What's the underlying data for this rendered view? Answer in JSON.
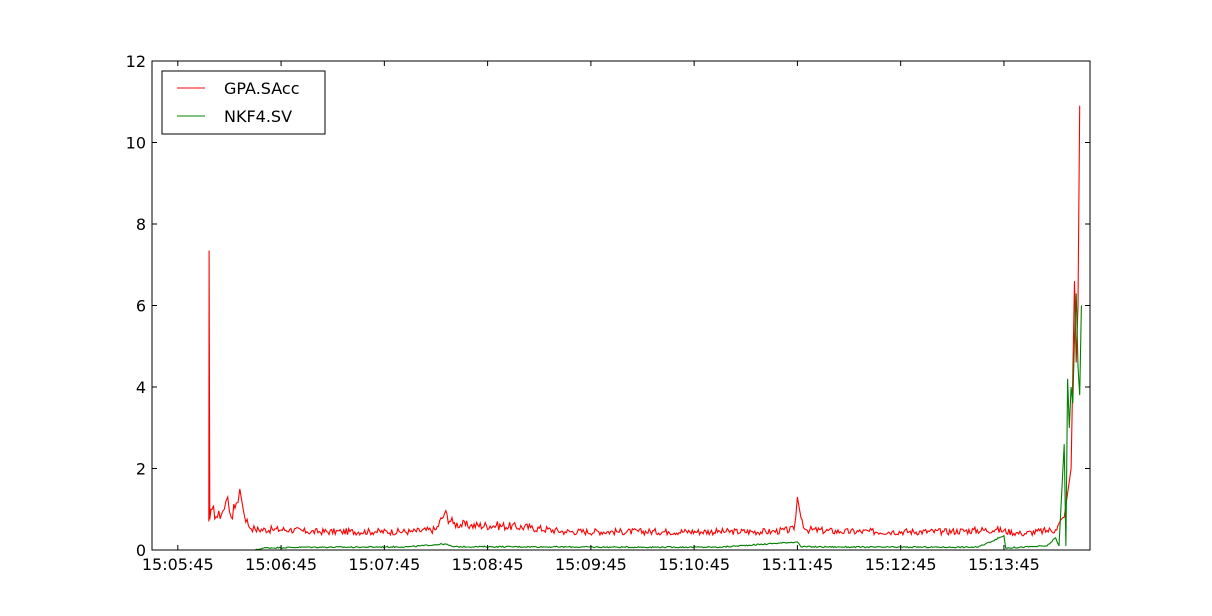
{
  "chart_data": {
    "type": "line",
    "title": "",
    "xlabel": "",
    "ylabel": "",
    "xlim": [
      "15:05:30",
      "15:14:35"
    ],
    "ylim": [
      0,
      12
    ],
    "x_ticks": [
      "15:05:45",
      "15:06:45",
      "15:07:45",
      "15:08:45",
      "15:09:45",
      "15:10:45",
      "15:11:45",
      "15:12:45",
      "15:13:45"
    ],
    "y_ticks": [
      0,
      2,
      4,
      6,
      8,
      10,
      12
    ],
    "grid": false,
    "legend_position": "top-left",
    "series": [
      {
        "name": "GPA.SAcc",
        "color": "#ff0000",
        "points": [
          [
            "15:06:03",
            0.7
          ],
          [
            "15:06:03.2",
            7.35
          ],
          [
            "15:06:03.6",
            0.75
          ],
          [
            "15:06:05",
            1.0
          ],
          [
            "15:06:08",
            0.8
          ],
          [
            "15:06:12",
            1.0
          ],
          [
            "15:06:14",
            1.3
          ],
          [
            "15:06:16",
            0.8
          ],
          [
            "15:06:19",
            1.15
          ],
          [
            "15:06:21",
            1.5
          ],
          [
            "15:06:23",
            1.0
          ],
          [
            "15:06:26",
            0.6
          ],
          [
            "15:06:30",
            0.5
          ],
          [
            "15:06:40",
            0.5
          ],
          [
            "15:06:50",
            0.5
          ],
          [
            "15:07:00",
            0.45
          ],
          [
            "15:07:20",
            0.45
          ],
          [
            "15:07:40",
            0.45
          ],
          [
            "15:08:00",
            0.45
          ],
          [
            "15:08:15",
            0.5
          ],
          [
            "15:08:20",
            0.9
          ],
          [
            "15:08:25",
            0.65
          ],
          [
            "15:08:35",
            0.6
          ],
          [
            "15:08:50",
            0.6
          ],
          [
            "15:09:10",
            0.55
          ],
          [
            "15:09:30",
            0.45
          ],
          [
            "15:10:00",
            0.45
          ],
          [
            "15:10:30",
            0.45
          ],
          [
            "15:11:00",
            0.45
          ],
          [
            "15:11:30",
            0.45
          ],
          [
            "15:11:43",
            0.5
          ],
          [
            "15:11:45",
            1.3
          ],
          [
            "15:11:47",
            0.8
          ],
          [
            "15:11:50",
            0.5
          ],
          [
            "15:12:10",
            0.45
          ],
          [
            "15:12:40",
            0.45
          ],
          [
            "15:13:10",
            0.45
          ],
          [
            "15:13:40",
            0.5
          ],
          [
            "15:13:55",
            0.4
          ],
          [
            "15:14:15",
            0.5
          ],
          [
            "15:14:20",
            0.8
          ],
          [
            "15:14:24",
            2.0
          ],
          [
            "15:14:26",
            6.6
          ],
          [
            "15:14:27",
            4.6
          ],
          [
            "15:14:28",
            6.0
          ],
          [
            "15:14:29",
            10.9
          ]
        ]
      },
      {
        "name": "NKF4.SV",
        "color": "#008000",
        "points": [
          [
            "15:05:45",
            0.0
          ],
          [
            "15:06:30",
            0.0
          ],
          [
            "15:06:35",
            0.05
          ],
          [
            "15:07:00",
            0.07
          ],
          [
            "15:07:30",
            0.07
          ],
          [
            "15:08:00",
            0.08
          ],
          [
            "15:08:20",
            0.15
          ],
          [
            "15:08:25",
            0.08
          ],
          [
            "15:09:00",
            0.08
          ],
          [
            "15:10:00",
            0.07
          ],
          [
            "15:11:00",
            0.07
          ],
          [
            "15:11:45",
            0.2
          ],
          [
            "15:11:47",
            0.08
          ],
          [
            "15:12:30",
            0.07
          ],
          [
            "15:13:30",
            0.07
          ],
          [
            "15:13:45",
            0.35
          ],
          [
            "15:13:46",
            0.05
          ],
          [
            "15:14:10",
            0.1
          ],
          [
            "15:14:15",
            0.3
          ],
          [
            "15:14:17",
            0.1
          ],
          [
            "15:14:20",
            2.6
          ],
          [
            "15:14:21",
            0.1
          ],
          [
            "15:14:22",
            4.2
          ],
          [
            "15:14:23",
            3.0
          ],
          [
            "15:14:24",
            4.0
          ],
          [
            "15:14:25",
            3.6
          ],
          [
            "15:14:26",
            5.2
          ],
          [
            "15:14:27",
            6.3
          ],
          [
            "15:14:28",
            4.5
          ],
          [
            "15:14:29",
            3.8
          ],
          [
            "15:14:30",
            6.0
          ]
        ]
      }
    ]
  }
}
